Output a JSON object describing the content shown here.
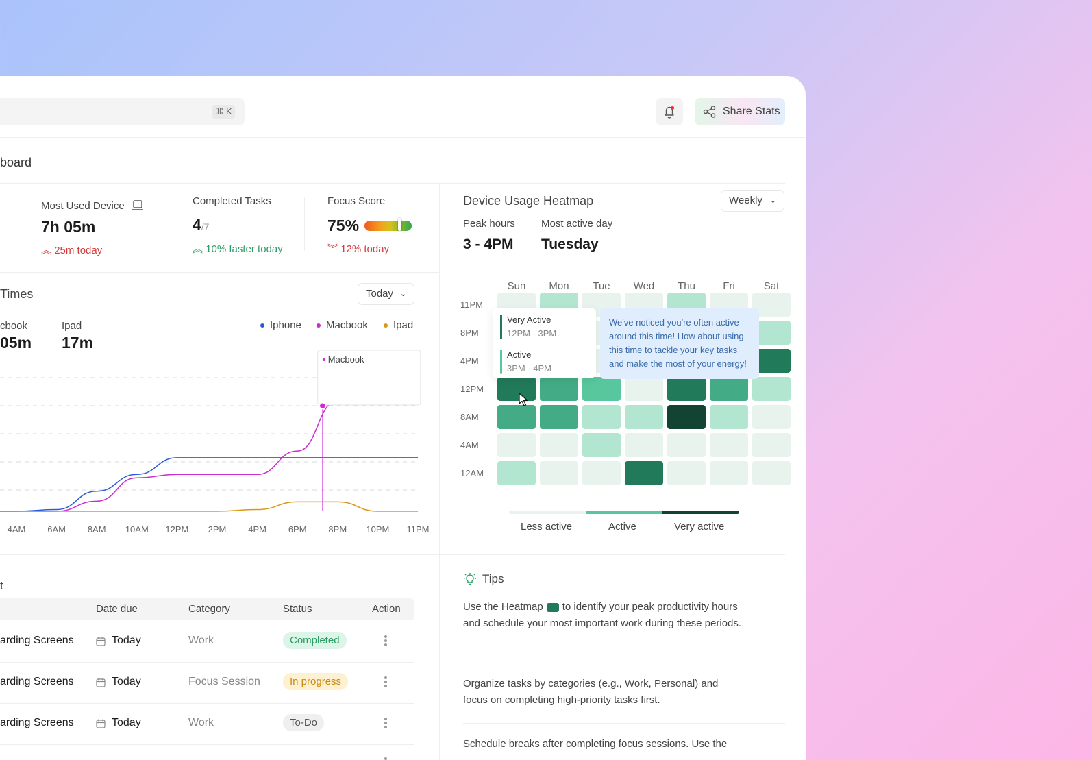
{
  "search": {
    "shortcut": "⌘ K"
  },
  "header": {
    "share_label": "Share Stats",
    "breadcrumb": "board"
  },
  "stats": [
    {
      "label": "Most Used Device",
      "value": "7h 05m",
      "delta": "25m today"
    },
    {
      "label": "Completed Tasks",
      "value": "4",
      "value_suffix": "/7",
      "delta": "10% faster today"
    },
    {
      "label": "Focus Score",
      "value": "75%",
      "delta": "12% today",
      "score_fraction": 0.75
    }
  ],
  "screen_times": {
    "title": "Times",
    "period": "Today",
    "device_a_label": "cbook",
    "device_a_value": "05m",
    "device_b_label": "Ipad",
    "device_b_value": "17m",
    "legend": [
      {
        "name": "Iphone",
        "color": "#2a5bd7"
      },
      {
        "name": "Macbook",
        "color": "#cc2bd3"
      },
      {
        "name": "Ipad",
        "color": "#d8991a"
      }
    ],
    "tooltip_label": "Macbook"
  },
  "chart_data": {
    "type": "line",
    "x": [
      "4AM",
      "6AM",
      "8AM",
      "10AM",
      "12PM",
      "2PM",
      "4PM",
      "6PM",
      "8PM",
      "10PM",
      "11PM"
    ],
    "series": [
      {
        "name": "Iphone",
        "color": "#2a5bd7",
        "values": [
          0,
          0.05,
          0.6,
          1.1,
          1.6,
          1.6,
          1.6,
          1.6,
          1.6,
          1.6,
          1.6
        ]
      },
      {
        "name": "Macbook",
        "color": "#cc2bd3",
        "values": [
          0,
          0,
          0.3,
          1.0,
          1.1,
          1.1,
          1.1,
          1.8,
          3.3,
          3.8,
          3.8
        ]
      },
      {
        "name": "Ipad",
        "color": "#d8991a",
        "values": [
          0,
          0,
          0,
          0,
          0,
          0,
          0.05,
          0.28,
          0.28,
          0,
          0
        ]
      }
    ],
    "ylim": [
      0,
      4.2
    ],
    "grid": true
  },
  "heatmap": {
    "title": "Device Usage Heatmap",
    "period": "Weekly",
    "peak_label": "Peak hours",
    "peak_value": "3 - 4PM",
    "active_day_label": "Most active day",
    "active_day_value": "Tuesday",
    "days": [
      "Sun",
      "Mon",
      "Tue",
      "Wed",
      "Thu",
      "Fri",
      "Sat"
    ],
    "hours": [
      "11PM",
      "8PM",
      "4PM",
      "12PM",
      "8AM",
      "4AM",
      "12AM"
    ],
    "levels": [
      [
        1,
        2,
        1,
        1,
        2,
        1,
        1
      ],
      [
        1,
        1,
        1,
        1,
        1,
        1,
        2
      ],
      [
        1,
        1,
        1,
        1,
        1,
        1,
        5
      ],
      [
        5,
        4,
        3,
        1,
        5,
        4,
        2
      ],
      [
        4,
        4,
        2,
        2,
        6,
        2,
        1
      ],
      [
        1,
        1,
        2,
        1,
        1,
        1,
        1
      ],
      [
        2,
        1,
        1,
        5,
        1,
        1,
        1
      ]
    ],
    "palette": [
      "#ffffff",
      "#e8f3ee",
      "#b2e6d1",
      "#59c79e",
      "#43ac86",
      "#217a5a",
      "#134332"
    ],
    "popup": {
      "very_active_label": "Very Active",
      "very_active_time": "12PM - 3PM",
      "active_label": "Active",
      "active_time": "3PM - 4PM"
    },
    "suggestion": "We've noticed you're often active around this time! How about using this time to tackle your key tasks and make the most of your energy!",
    "scale": [
      "Less active",
      "Active",
      "Very active"
    ]
  },
  "tasks": {
    "title": "t",
    "columns": [
      "Date due",
      "Category",
      "Status",
      "Action"
    ],
    "rows": [
      {
        "name": "arding Screens",
        "due": "Today",
        "category": "Work",
        "status": "Completed"
      },
      {
        "name": "arding Screens",
        "due": "Today",
        "category": "Focus Session",
        "status": "In progress"
      },
      {
        "name": "arding Screens",
        "due": "Today",
        "category": "Work",
        "status": "To-Do"
      }
    ]
  },
  "tips": {
    "title": "Tips",
    "tip1_before": "Use the Heatmap",
    "tip1_after": "to identify your peak productivity hours and schedule your most important work during these periods.",
    "tip2": "Organize tasks by categories (e.g., Work, Personal) and focus on completing high-priority tasks first.",
    "tip3": "Schedule breaks after completing focus sessions. Use the"
  }
}
